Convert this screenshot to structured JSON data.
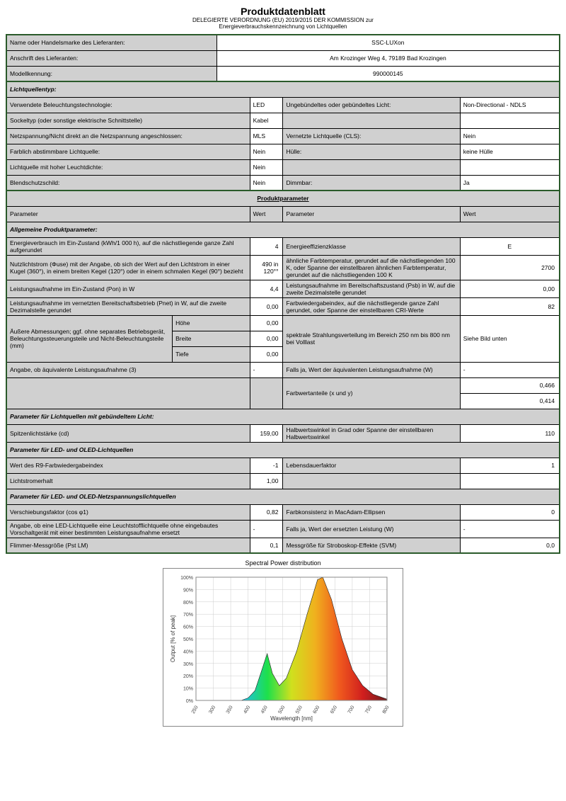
{
  "header": {
    "title": "Produktdatenblatt",
    "subtitle1": "DELEGIERTE VERORDNUNG (EU) 2019/2015 DER KOMMISSION zur",
    "subtitle2": "Energieverbrauchskennzeichnung von Lichtquellen"
  },
  "supplier": {
    "name_label": "Name oder Handelsmarke des Lieferanten:",
    "name_value": "SSC-LUXon",
    "address_label": "Anschrift des Lieferanten:",
    "address_value": "Am Krozinger Weg 4, 79189 Bad Krozingen",
    "model_label": "Modellkennung:",
    "model_value": "990000145"
  },
  "lichtquellentyp": {
    "header": "Lichtquellentyp:",
    "tech_label": "Verwendete Beleuchtungstechnologie:",
    "tech_value": "LED",
    "bundle_label": "Ungebündeltes oder gebündeltes Licht:",
    "bundle_value": "Non-Directional - NDLS",
    "socket_label": "Sockeltyp (oder sonstige elektrische Schnittstelle)",
    "socket_value": "Kabel",
    "netz_label": "Netzspannung/Nicht direkt an die Netzspannung angeschlossen:",
    "netz_value": "MLS",
    "cls_label": "Vernetzte Lichtquelle (CLS):",
    "cls_value": "Nein",
    "farb_label": "Farblich abstimmbare Lichtquelle:",
    "farb_value": "Nein",
    "hulle_label": "Hülle:",
    "hulle_value": "keine Hülle",
    "hoch_label": "Lichtquelle mit hoher Leuchtdichte:",
    "hoch_value": "Nein",
    "blend_label": "Blendschutzschild:",
    "blend_value": "Nein",
    "dimm_label": "Dimmbar:",
    "dimm_value": "Ja"
  },
  "produktparameter": {
    "header": "Produktparameter",
    "col1": "Parameter",
    "col2": "Wert",
    "col3": "Parameter",
    "col4": "Wert",
    "allgemeine": "Allgemeine Produktparameter:",
    "r1a": "Energieverbrauch im Ein-Zustand (kWh/1 000 h), auf die nächstliegende ganze Zahl aufgerundet",
    "r1av": "4",
    "r1b": "Energieeffizienzklasse",
    "r1bv": "E",
    "r2a": "Nutzlichtstrom (Φuse) mit der Angabe, ob sich der Wert auf den Lichtstrom in einer Kugel (360°), in einem breiten Kegel (120°) oder in einem schmalen Kegel (90°) bezieht",
    "r2av": "490 in 120°°",
    "r2b": "ähnliche Farbtemperatur, gerundet auf die nächstliegenden 100 K, oder Spanne der einstellbaren ähnlichen Farbtemperatur, gerundet auf die  nächstliegenden 100 K",
    "r2bv": "2700",
    "r3a": "Leistungsaufnahme im Ein-Zustand (Pon) in W",
    "r3av": "4,4",
    "r3b": "Leistungsaufnahme im Bereitschaftszustand (Psb) in W, auf die zweite Dezimalstelle gerundet",
    "r3bv": "0,00",
    "r4a": "Leistungsaufnahme im vernetzten Bereitschaftsbetrieb (Pnet) in W, auf die zweite Dezimalstelle gerundet",
    "r4av": "0,00",
    "r4b": "Farbwiedergabeindex, auf die nächstliegende ganze Zahl gerundet, oder Spanne der einstellbaren CRI-Werte",
    "r4bv": "82",
    "dim_label": "Äußere Abmessungen; ggf. ohne separates Betriebsgerät, Beleuchtungssteuerungsteile und Nicht-Beleuchtungsteile (mm)",
    "hohe": "Höhe",
    "hohe_v": "0,00",
    "breite": "Breite",
    "breite_v": "0,00",
    "tiefe": "Tiefe",
    "tiefe_v": "0,00",
    "spektral": "spektrale Strahlungsverteilung im Bereich 250 nm bis 800 nm bei Volllast",
    "spektral_v": "Siehe Bild unten",
    "r6a": "Angabe, ob äquivalente Leistungsaufnahme (3)",
    "r6av": "-",
    "r6b": "Falls ja, Wert der äquivalenten Leistungsaufnahme (W)",
    "r6bv": "-",
    "farbw": "Farbwertanteile (x und y)",
    "farbw_x": "0,466",
    "farbw_y": "0,414",
    "param_bundle": "Parameter für Lichtquellen mit gebündeltem Licht:",
    "spitz_label": "Spitzenlichtstärke (cd)",
    "spitz_v": "159,00",
    "halb_label": "Halbwertswinkel in Grad oder Spanne der einstellbaren Halbwertswinkel",
    "halb_v": "110",
    "param_led": "Parameter für LED- und OLED-Lichtquellen",
    "r9_label": "Wert des R9-Farbwiedergabeindex",
    "r9_v": "-1",
    "lebens_label": "Lebensdauerfaktor",
    "lebens_v": "1",
    "lichtstrom_label": "Lichtstromerhalt",
    "lichtstrom_v": "1,00",
    "param_netz": "Parameter für LED- und OLED-Netzspannungslichtquellen",
    "versch_label": "Verschiebungsfaktor (cos φ1)",
    "versch_v": "0,82",
    "farbk_label": "Farbkonsistenz in MacAdam-Ellipsen",
    "farbk_v": "0",
    "angabe_label": "Angabe, ob eine LED-Lichtquelle eine Leuchtstofflichtquelle ohne eingebautes Vorschaltgerät mit einer bestimmten Leistungsaufnahme ersetzt",
    "angabe_v": "-",
    "falls_label": "Falls ja, Wert der ersetzten Leistung (W)",
    "falls_v": "-",
    "flimmer_label": "Flimmer-Messgröße (Pst LM)",
    "flimmer_v": "0,1",
    "mess_label": "Messgröße für Stroboskop-Effekte (SVM)",
    "mess_v": "0,0"
  },
  "chart": {
    "title": "Spectral Power distribution",
    "ylabel": "Output [% of peak]",
    "xlabel": "Wavelength [nm]",
    "yticks": [
      "0%",
      "10%",
      "20%",
      "30%",
      "40%",
      "50%",
      "60%",
      "70%",
      "80%",
      "90%",
      "100%"
    ],
    "xticks": [
      "250",
      "300",
      "350",
      "400",
      "450",
      "500",
      "550",
      "600",
      "650",
      "700",
      "750",
      "800"
    ],
    "plot_bg": "#ffffff",
    "grid_color": "#cccccc",
    "border_color": "#888888",
    "spectrum_gradient": [
      "#3a1e6e",
      "#1e3ae0",
      "#1ec0e0",
      "#1ee04a",
      "#d0e01e",
      "#f0b01e",
      "#f05a1e",
      "#d01e1e",
      "#6e1e1e"
    ],
    "curve_points": [
      [
        250,
        0
      ],
      [
        380,
        0
      ],
      [
        400,
        2
      ],
      [
        420,
        8
      ],
      [
        440,
        25
      ],
      [
        455,
        38
      ],
      [
        470,
        22
      ],
      [
        490,
        12
      ],
      [
        510,
        18
      ],
      [
        540,
        40
      ],
      [
        570,
        70
      ],
      [
        600,
        98
      ],
      [
        615,
        100
      ],
      [
        640,
        82
      ],
      [
        670,
        50
      ],
      [
        700,
        25
      ],
      [
        730,
        12
      ],
      [
        760,
        5
      ],
      [
        800,
        1
      ]
    ]
  }
}
